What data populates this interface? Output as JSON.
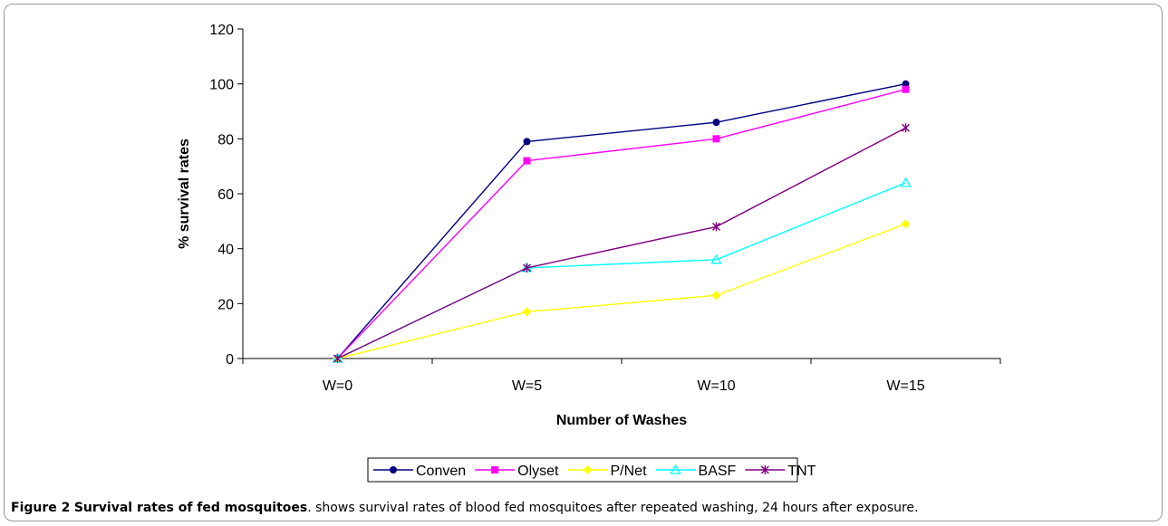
{
  "chart_data": {
    "type": "line",
    "categories": [
      "W=0",
      "W=5",
      "W=10",
      "W=15"
    ],
    "xlabel": "Number of Washes",
    "ylabel": "% survival rates",
    "ylim": [
      0,
      120
    ],
    "yticks": [
      0,
      20,
      40,
      60,
      80,
      100,
      120
    ],
    "grid": false,
    "legend_position": "bottom",
    "series": [
      {
        "name": "Conven",
        "values": [
          0,
          79,
          86,
          100
        ],
        "color": "#000080",
        "marker": "circle"
      },
      {
        "name": "Olyset",
        "values": [
          0,
          72,
          80,
          98
        ],
        "color": "#ff00ff",
        "marker": "square"
      },
      {
        "name": "P/Net",
        "values": [
          0,
          17,
          23,
          49
        ],
        "color": "#ffff00",
        "marker": "diamond"
      },
      {
        "name": "BASF",
        "values": [
          0,
          33,
          36,
          64
        ],
        "color": "#00ffff",
        "marker": "triangle"
      },
      {
        "name": "TNT",
        "values": [
          0,
          33,
          48,
          84
        ],
        "color": "#800080",
        "marker": "star"
      }
    ]
  },
  "caption": {
    "label": "Figure 2",
    "title": "Survival rates of fed mosquitoes",
    "text": ". shows survival rates of blood fed mosquitoes after repeated washing, 24 hours after exposure."
  }
}
